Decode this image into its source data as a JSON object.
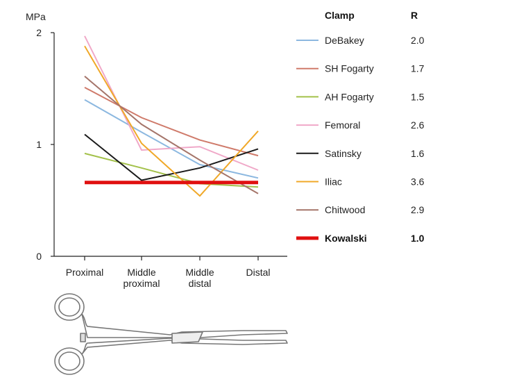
{
  "chart_data": {
    "type": "line",
    "ylabel": "MPa",
    "ylim": [
      0,
      2
    ],
    "yticks": [
      "0",
      "1",
      "2"
    ],
    "categories": [
      [
        "Proximal"
      ],
      [
        "Middle",
        "proximal"
      ],
      [
        "Middle",
        "distal"
      ],
      [
        "Distal"
      ]
    ],
    "legend_header": {
      "name": "Clamp",
      "value": "R"
    },
    "series": [
      {
        "name": "DeBakey",
        "r": "2.0",
        "color": "#8cb8e0",
        "values": [
          1.4,
          1.11,
          0.82,
          0.7
        ]
      },
      {
        "name": "SH Fogarty",
        "r": "1.7",
        "color": "#cf7a6a",
        "values": [
          1.51,
          1.24,
          1.04,
          0.9
        ]
      },
      {
        "name": "AH Fogarty",
        "r": "1.5",
        "color": "#a3c14a",
        "values": [
          0.92,
          0.79,
          0.65,
          0.62
        ]
      },
      {
        "name": "Femoral",
        "r": "2.6",
        "color": "#f0a8c8",
        "values": [
          1.97,
          0.95,
          0.98,
          0.77
        ]
      },
      {
        "name": "Satinsky",
        "r": "1.6",
        "color": "#1a1a1a",
        "values": [
          1.09,
          0.68,
          0.79,
          0.96
        ]
      },
      {
        "name": "Iliac",
        "r": "3.6",
        "color": "#f0a828",
        "values": [
          1.88,
          1.01,
          0.54,
          1.12
        ]
      },
      {
        "name": "Chitwood",
        "r": "2.9",
        "color": "#a5756a",
        "values": [
          1.61,
          1.18,
          0.86,
          0.56
        ]
      },
      {
        "name": "Kowalski",
        "r": "1.0",
        "color": "#e01010",
        "values": [
          0.66,
          0.66,
          0.66,
          0.66
        ],
        "emphasis": true
      }
    ]
  }
}
